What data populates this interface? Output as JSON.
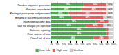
{
  "chart_data": {
    "type": "bar",
    "orientation": "horizontal",
    "stacked": true,
    "categories": [
      "Overall risk of bias",
      "Other sources of bias",
      "Selective reporting",
      "Was the analysis pre-specified",
      "Incomplete outcome data",
      "Blinding of outcome assessment",
      "Blinding of participants and personnel",
      "Allocation concealment",
      "Random sequence generation"
    ],
    "series": [
      {
        "name": "Low risk",
        "color": "#4ca84c",
        "values": [
          68,
          88,
          88,
          56,
          72,
          32,
          28,
          48,
          52
        ],
        "value_labels": [
          "68%",
          "88%",
          "88%",
          "56%",
          "72%",
          "32%",
          "28%",
          "48%",
          "52%"
        ]
      },
      {
        "name": "High risk",
        "color": "#e06060",
        "values": [
          24,
          4,
          4,
          28,
          20,
          52,
          60,
          40,
          36
        ],
        "value_labels": [
          "24%",
          null,
          null,
          "28%",
          "20%",
          "52%",
          "60%",
          "40%",
          "36%"
        ]
      },
      {
        "name": "Unclear",
        "color": "#d0d0d0",
        "values": [
          8,
          8,
          8,
          16,
          8,
          16,
          12,
          12,
          12
        ],
        "value_labels": [
          null,
          null,
          null,
          "16%",
          null,
          "16%",
          "12%",
          "12%",
          "12%"
        ]
      }
    ],
    "xlim": [
      0,
      100
    ],
    "xticks": [
      {
        "value": 0,
        "label": "0%"
      },
      {
        "value": 10,
        "label": "10%"
      },
      {
        "value": 20,
        "label": "20%"
      },
      {
        "value": 30,
        "label": "30%"
      },
      {
        "value": 40,
        "label": "40%"
      },
      {
        "value": 50,
        "label": "50%"
      },
      {
        "value": 60,
        "label": "60%"
      },
      {
        "value": 70,
        "label": "70%"
      },
      {
        "value": 80,
        "label": "80%"
      },
      {
        "value": 90,
        "label": "90%"
      },
      {
        "value": 100,
        "label": "100%"
      }
    ],
    "grid": true,
    "data_labels": true,
    "legend": "bottom"
  }
}
